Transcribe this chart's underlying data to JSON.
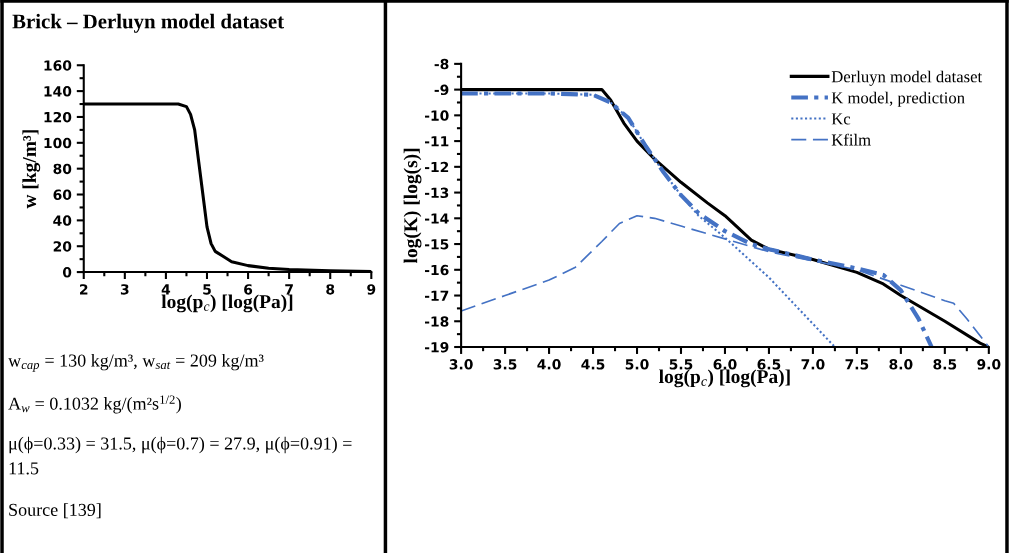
{
  "chart_data": [
    {
      "type": "line",
      "title": "Brick – Derluyn model dataset",
      "xlabel": "log(p$_{c}$) [log(Pa)]",
      "ylabel": "w [kg/m³]",
      "color": "#000000",
      "grid": false,
      "legend": false,
      "x": [
        2,
        3,
        4,
        4.3,
        4.5,
        4.6,
        4.7,
        4.8,
        4.9,
        5.0,
        5.1,
        5.2,
        5.4,
        5.6,
        6.0,
        6.5,
        7.0,
        8.0,
        9.0
      ],
      "values": [
        130,
        130,
        130,
        130,
        128,
        122,
        110,
        85,
        60,
        35,
        22,
        16,
        12,
        8,
        5,
        3,
        2,
        1,
        0.5
      ],
      "xlim": [
        2,
        9
      ],
      "ylim": [
        0,
        160
      ],
      "xticks": [
        2,
        3,
        4,
        5,
        6,
        7,
        8,
        9
      ],
      "yticks": [
        0,
        20,
        40,
        60,
        80,
        100,
        120,
        140,
        160
      ],
      "annotations": [
        "w$_{cap}$ = 130 kg/m³, w$_{sat}$ = 209 kg/m³",
        "A$_{w}$ = 0.1032 kg/(m²s$^{1/2}$)",
        "μ(ϕ=0.33) = 31.5, μ(ϕ=0.7) = 27.9, μ(ϕ=0.91) = 11.5",
        "Source [139]"
      ]
    },
    {
      "type": "line",
      "xlabel": "log(p$_{c}$) [log(Pa)]",
      "ylabel": "log(K) [log(s)]",
      "grid": false,
      "legend": "top right",
      "xlim": [
        3,
        9
      ],
      "ylim": [
        -19,
        -8
      ],
      "xticks": [
        {
          "value": 3,
          "label": "3.0"
        },
        {
          "value": 3.5,
          "label": "3.5"
        },
        {
          "value": 4,
          "label": "4.0"
        },
        {
          "value": 4.5,
          "label": "4.5"
        },
        {
          "value": 5,
          "label": "5.0"
        },
        {
          "value": 5.5,
          "label": "5.5"
        },
        {
          "value": 6,
          "label": "6.0"
        },
        {
          "value": 6.5,
          "label": "6.5"
        },
        {
          "value": 7,
          "label": "7.0"
        },
        {
          "value": 7.5,
          "label": "7.5"
        },
        {
          "value": 8,
          "label": "8.0"
        },
        {
          "value": 8.5,
          "label": "8.5"
        },
        {
          "value": 9,
          "label": "9.0"
        }
      ],
      "yticks": [
        -8,
        -9,
        -10,
        -11,
        -12,
        -13,
        -14,
        -15,
        -16,
        -17,
        -18,
        -19
      ],
      "series": [
        {
          "name": "Derluyn model dataset",
          "color": "#000000",
          "line_style": "solid",
          "x": [
            3.0,
            4.0,
            4.6,
            4.7,
            4.85,
            5.0,
            5.2,
            5.5,
            5.8,
            6.0,
            6.3,
            6.5,
            7.0,
            7.5,
            7.8,
            8.0,
            8.5,
            8.9,
            9.0
          ],
          "values": [
            -9.0,
            -9.0,
            -9.0,
            -9.4,
            -10.3,
            -11.0,
            -11.7,
            -12.6,
            -13.4,
            -13.9,
            -14.85,
            -15.2,
            -15.6,
            -16.1,
            -16.55,
            -17.0,
            -18.0,
            -18.85,
            -19.0
          ]
        },
        {
          "name": "K model, prediction",
          "color": "#4472c4",
          "line_style": "dashed",
          "x": [
            3.0,
            4.0,
            4.5,
            4.7,
            4.9,
            5.1,
            5.3,
            5.5,
            5.7,
            6.0,
            6.3,
            6.5,
            7.0,
            7.5,
            7.8,
            8.0,
            8.2,
            8.35
          ],
          "values": [
            -9.15,
            -9.15,
            -9.2,
            -9.5,
            -10.1,
            -11.2,
            -12.2,
            -13.1,
            -13.8,
            -14.5,
            -15.0,
            -15.2,
            -15.6,
            -15.95,
            -16.2,
            -16.8,
            -17.9,
            -19.0
          ]
        },
        {
          "name": "Kc",
          "color": "#4472c4",
          "line_style": "dotted",
          "x": [
            3.0,
            4.0,
            4.5,
            4.7,
            4.9,
            5.1,
            5.3,
            5.5,
            5.7,
            6.0,
            6.5,
            7.0,
            7.25
          ],
          "values": [
            -9.15,
            -9.15,
            -9.2,
            -9.5,
            -10.1,
            -11.2,
            -12.2,
            -13.1,
            -13.9,
            -14.75,
            -16.3,
            -18.1,
            -19.0
          ]
        },
        {
          "name": "Kfilm",
          "color": "#4472c4",
          "line_style": "dashed",
          "x": [
            3.0,
            3.5,
            4.0,
            4.3,
            4.6,
            4.8,
            5.0,
            5.2,
            5.5,
            6.0,
            6.5,
            7.0,
            7.5,
            8.0,
            8.5,
            8.6,
            8.75,
            9.0
          ],
          "values": [
            -17.6,
            -17.0,
            -16.4,
            -15.9,
            -14.9,
            -14.2,
            -13.9,
            -14.0,
            -14.3,
            -14.8,
            -15.3,
            -15.65,
            -16.0,
            -16.6,
            -17.2,
            -17.3,
            -17.9,
            -19.0
          ]
        }
      ]
    }
  ]
}
